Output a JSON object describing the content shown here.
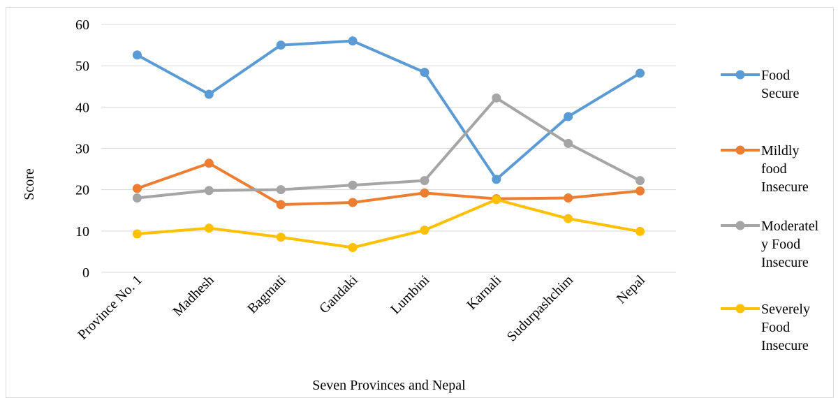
{
  "chart_data": {
    "type": "line",
    "title": "",
    "xlabel": "Seven Provinces and Nepal",
    "ylabel": "Score",
    "ylim": [
      0,
      60
    ],
    "yticks": [
      0,
      10,
      20,
      30,
      40,
      50,
      60
    ],
    "grid": true,
    "legend_position": "right",
    "categories": [
      "Province No. 1",
      "Madhesh",
      "Bagmati",
      "Gandaki",
      "Lumbini",
      "Karnali",
      "Sudurpashchim",
      "Nepal"
    ],
    "series": [
      {
        "name": "Food Secure",
        "legend_lines": [
          "Food",
          "Secure"
        ],
        "color": "#5b9bd5",
        "values": [
          52.6,
          43.1,
          55.0,
          56.0,
          48.4,
          22.5,
          37.7,
          48.2
        ]
      },
      {
        "name": "Mildly food Insecure",
        "legend_lines": [
          "Mildly",
          "food",
          "Insecure"
        ],
        "color": "#ed7d31",
        "values": [
          20.3,
          26.4,
          16.4,
          16.9,
          19.2,
          17.8,
          18.0,
          19.7
        ]
      },
      {
        "name": "Moderately Food Insecure",
        "legend_lines": [
          "Moderatel",
          "y Food",
          "Insecure"
        ],
        "color": "#a5a5a5",
        "values": [
          18.0,
          19.8,
          20.0,
          21.1,
          22.2,
          42.2,
          31.2,
          22.2
        ]
      },
      {
        "name": "Severely Food Insecure",
        "legend_lines": [
          "Severely",
          "Food",
          "Insecure"
        ],
        "color": "#ffc000",
        "values": [
          9.3,
          10.7,
          8.5,
          6.0,
          10.2,
          17.6,
          13.0,
          9.9
        ]
      }
    ]
  }
}
